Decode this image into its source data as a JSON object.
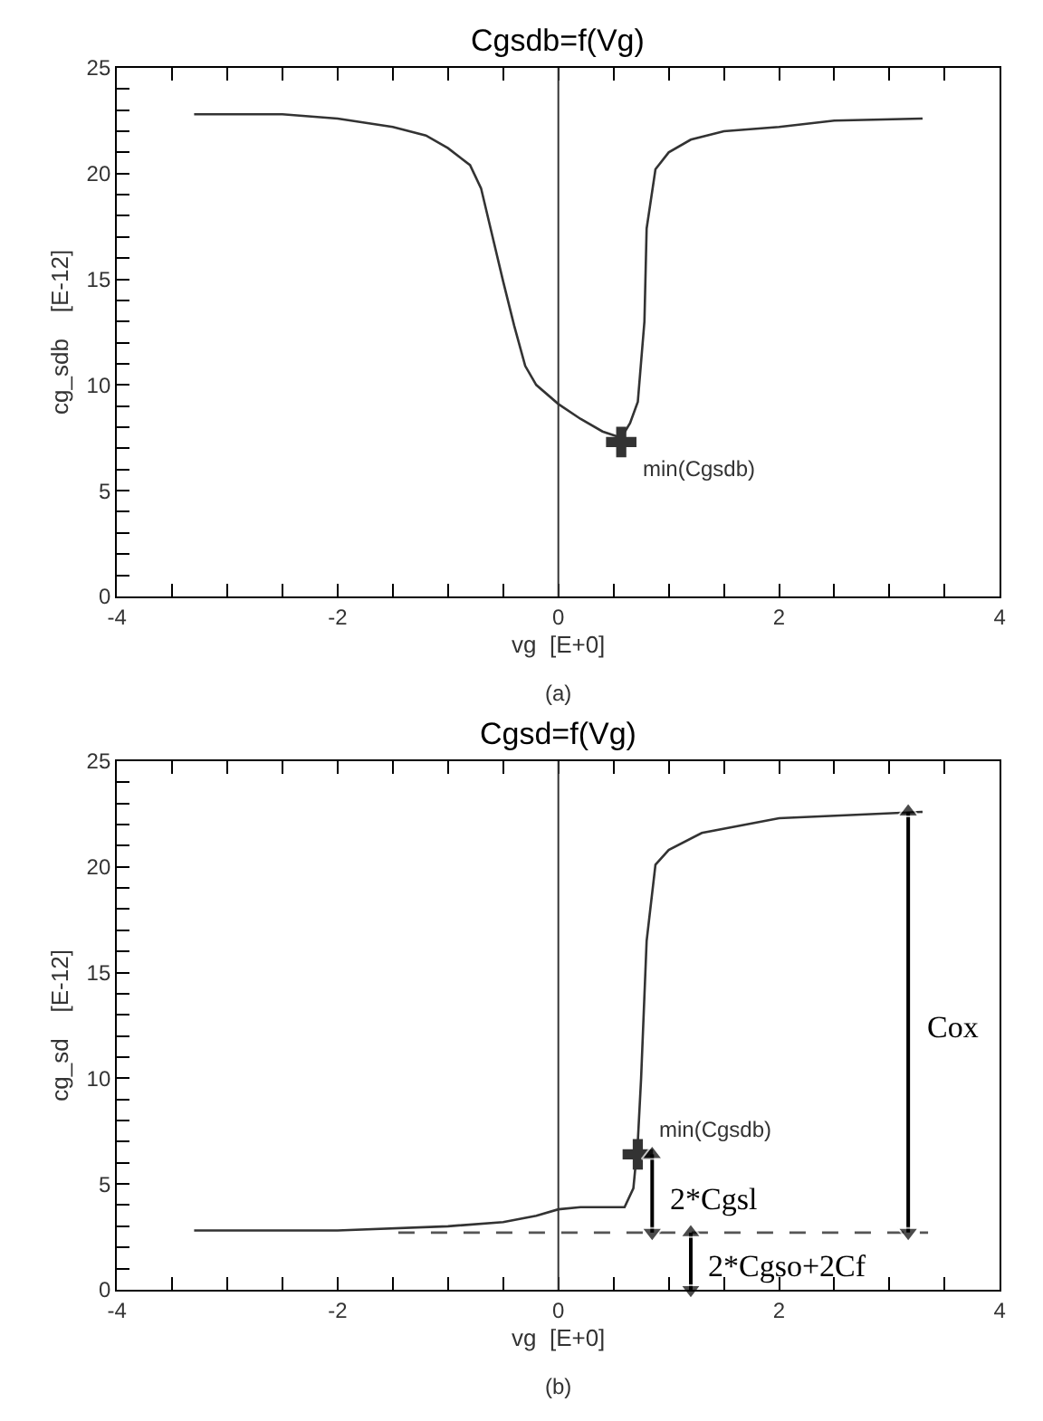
{
  "chart_data": [
    {
      "type": "line",
      "title": "Cgsdb=f(Vg)",
      "xlabel": "vg  [E+0]",
      "ylabel": "cg_sdb    [E-12]",
      "xlim": [
        -4,
        4
      ],
      "ylim": [
        0,
        25
      ],
      "xticks": [
        -4,
        {
          "value": -3.5,
          "label": null
        },
        {
          "value": -3,
          "label": null
        },
        {
          "value": -2.5,
          "label": null
        },
        -2,
        {
          "value": -1.5,
          "label": null
        },
        {
          "value": -1,
          "label": null
        },
        {
          "value": -0.5,
          "label": null
        },
        0,
        {
          "value": 0.5,
          "label": null
        },
        {
          "value": 1,
          "label": null
        },
        {
          "value": 1.5,
          "label": null
        },
        2,
        {
          "value": 2.5,
          "label": null
        },
        {
          "value": 3,
          "label": null
        },
        {
          "value": 3.5,
          "label": null
        },
        4
      ],
      "yticks": [
        0,
        {
          "value": 1,
          "label": null
        },
        {
          "value": 2,
          "label": null
        },
        {
          "value": 3,
          "label": null
        },
        {
          "value": 4,
          "label": null
        },
        5,
        {
          "value": 6,
          "label": null
        },
        {
          "value": 7,
          "label": null
        },
        {
          "value": 8,
          "label": null
        },
        {
          "value": 9,
          "label": null
        },
        10,
        {
          "value": 11,
          "label": null
        },
        {
          "value": 12,
          "label": null
        },
        {
          "value": 13,
          "label": null
        },
        {
          "value": 14,
          "label": null
        },
        15,
        {
          "value": 16,
          "label": null
        },
        {
          "value": 17,
          "label": null
        },
        {
          "value": 18,
          "label": null
        },
        {
          "value": 19,
          "label": null
        },
        20,
        {
          "value": 21,
          "label": null
        },
        {
          "value": 22,
          "label": null
        },
        {
          "value": 23,
          "label": null
        },
        {
          "value": 24,
          "label": null
        },
        25
      ],
      "grid": false,
      "line_style": "solid",
      "marker": "none",
      "series": [
        {
          "color": "#333333",
          "x": [
            -3.3,
            -2.5,
            -2.0,
            -1.5,
            -1.2,
            -1.0,
            -0.8,
            -0.7,
            -0.6,
            -0.5,
            -0.4,
            -0.3,
            -0.2,
            0,
            0.2,
            0.4,
            0.57,
            0.65,
            0.72,
            0.78,
            0.8,
            0.88,
            1.0,
            1.2,
            1.5,
            2.0,
            2.5,
            3.3
          ],
          "values": [
            22.8,
            22.8,
            22.6,
            22.2,
            21.8,
            21.2,
            20.4,
            19.3,
            17.1,
            14.9,
            12.8,
            10.9,
            10.0,
            9.1,
            8.4,
            7.8,
            7.5,
            8.2,
            9.2,
            13.0,
            17.4,
            20.2,
            21.0,
            21.6,
            22.0,
            22.2,
            22.5,
            22.6
          ]
        },
        {
          "type": "scatter",
          "marker": "cross",
          "name": "min(Cgsdb)",
          "color": "#333333",
          "x": [
            0.57
          ],
          "values": [
            7.3
          ]
        }
      ],
      "ref_lines": [
        {
          "axis": "x",
          "value": 0,
          "color": "#333333"
        }
      ],
      "annotations": [
        "(a)"
      ]
    },
    {
      "type": "line",
      "title": "Cgsd=f(Vg)",
      "xlabel": "vg  [E+0]",
      "ylabel": "cg_sd    [E-12]",
      "xlim": [
        -4,
        4
      ],
      "ylim": [
        0,
        25
      ],
      "xticks": [
        -4,
        {
          "value": -3.5,
          "label": null
        },
        {
          "value": -3,
          "label": null
        },
        {
          "value": -2.5,
          "label": null
        },
        -2,
        {
          "value": -1.5,
          "label": null
        },
        {
          "value": -1,
          "label": null
        },
        {
          "value": -0.5,
          "label": null
        },
        0,
        {
          "value": 0.5,
          "label": null
        },
        {
          "value": 1,
          "label": null
        },
        {
          "value": 1.5,
          "label": null
        },
        2,
        {
          "value": 2.5,
          "label": null
        },
        {
          "value": 3,
          "label": null
        },
        {
          "value": 3.5,
          "label": null
        },
        4
      ],
      "yticks": [
        0,
        {
          "value": 1,
          "label": null
        },
        {
          "value": 2,
          "label": null
        },
        {
          "value": 3,
          "label": null
        },
        {
          "value": 4,
          "label": null
        },
        5,
        {
          "value": 6,
          "label": null
        },
        {
          "value": 7,
          "label": null
        },
        {
          "value": 8,
          "label": null
        },
        {
          "value": 9,
          "label": null
        },
        10,
        {
          "value": 11,
          "label": null
        },
        {
          "value": 12,
          "label": null
        },
        {
          "value": 13,
          "label": null
        },
        {
          "value": 14,
          "label": null
        },
        15,
        {
          "value": 16,
          "label": null
        },
        {
          "value": 17,
          "label": null
        },
        {
          "value": 18,
          "label": null
        },
        {
          "value": 19,
          "label": null
        },
        20,
        {
          "value": 21,
          "label": null
        },
        {
          "value": 22,
          "label": null
        },
        {
          "value": 23,
          "label": null
        },
        {
          "value": 24,
          "label": null
        },
        25
      ],
      "grid": false,
      "line_style": "solid",
      "marker": "none",
      "series": [
        {
          "color": "#333333",
          "x": [
            -3.3,
            -2.0,
            -1.0,
            -0.5,
            -0.2,
            0,
            0.2,
            0.6,
            0.68,
            0.72,
            0.75,
            0.8,
            0.88,
            1.0,
            1.3,
            2.0,
            3.3
          ],
          "values": [
            2.8,
            2.8,
            3.0,
            3.2,
            3.5,
            3.8,
            3.9,
            3.9,
            4.8,
            7.0,
            10.0,
            16.5,
            20.1,
            20.8,
            21.6,
            22.3,
            22.6
          ]
        },
        {
          "type": "scatter",
          "marker": "cross",
          "name": "min(Cgsdb)",
          "color": "#333333",
          "x": [
            0.72
          ],
          "values": [
            6.4
          ]
        },
        {
          "color": "#555555",
          "line_style": "dashed",
          "x": [
            -1.45,
            3.35
          ],
          "values": [
            2.7,
            2.7
          ]
        },
        {
          "color": "#000000",
          "marker": "triangle",
          "name": "Cox",
          "x": [
            3.17,
            3.17
          ],
          "values": [
            2.7,
            22.6
          ]
        },
        {
          "color": "#000000",
          "marker": "triangle",
          "name": "2*Cgsl",
          "x": [
            0.85,
            0.85
          ],
          "values": [
            2.7,
            6.4
          ]
        },
        {
          "color": "#000000",
          "marker": "triangle",
          "name": "2*Cgso+2Cf",
          "x": [
            1.2,
            1.2
          ],
          "values": [
            0,
            2.7
          ]
        }
      ],
      "ref_lines": [
        {
          "axis": "x",
          "value": 0,
          "color": "#333333"
        }
      ],
      "annotations": [
        "(b)"
      ]
    }
  ]
}
